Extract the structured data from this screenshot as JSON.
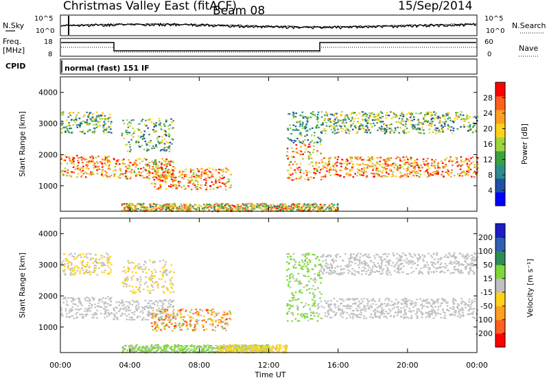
{
  "header": {
    "station": "Christmas Valley East (fitACF)",
    "beam": "Beam 08",
    "date": "15/Sep/2014"
  },
  "status": {
    "nsky_label": "N.Sky",
    "nsearch_label": "N.Search",
    "noise_ticks": [
      "10^5",
      "10^0"
    ],
    "freq_label_line1": "Freq.",
    "freq_label_line2": "[MHz]",
    "freq_ticks": [
      "18",
      "8"
    ],
    "nave_label": "Nave",
    "nave_ticks": [
      "60",
      "0"
    ],
    "cpid_label": "CPID",
    "cpid_text": "normal (fast) 151 IF"
  },
  "x_axis": {
    "title": "Time UT",
    "ticks": [
      "00:00",
      "04:00",
      "08:00",
      "12:00",
      "16:00",
      "20:00",
      "00:00"
    ]
  },
  "chart_data": [
    {
      "type": "heatmap",
      "panel": "power",
      "xlabel": "Time UT",
      "ylabel": "Slant Range [km]",
      "xlim": [
        0,
        24
      ],
      "ylim": [
        180,
        4500
      ],
      "y_ticks": [
        "1000",
        "2000",
        "3000",
        "4000"
      ],
      "colorbar": {
        "label": "Power [dB]",
        "ticks": [
          "28",
          "24",
          "20",
          "16",
          "12",
          "8",
          "4"
        ],
        "range": [
          0,
          30
        ],
        "colors": [
          "#0000ff",
          "#1f4fa6",
          "#2e8b8b",
          "#3ca040",
          "#9fd43a",
          "#ffd21a",
          "#ffa020",
          "#ff6020",
          "#ff0000"
        ]
      },
      "scatter_bands": [
        {
          "t0": 0.0,
          "t1": 2.9,
          "r0": 1300,
          "r1": 2000,
          "vmin": 14,
          "vmax": 30
        },
        {
          "t0": 0.0,
          "t1": 2.9,
          "r0": 2700,
          "r1": 3400,
          "vmin": 4,
          "vmax": 22
        },
        {
          "t0": 3.0,
          "t1": 6.5,
          "r0": 1250,
          "r1": 1900,
          "vmin": 12,
          "vmax": 30
        },
        {
          "t0": 3.5,
          "t1": 6.5,
          "r0": 2100,
          "r1": 3200,
          "vmin": 4,
          "vmax": 20
        },
        {
          "t0": 5.2,
          "t1": 9.8,
          "r0": 900,
          "r1": 1600,
          "vmin": 14,
          "vmax": 30
        },
        {
          "t0": 13.0,
          "t1": 15.0,
          "r0": 1200,
          "r1": 2400,
          "vmin": 12,
          "vmax": 30
        },
        {
          "t0": 13.0,
          "t1": 15.0,
          "r0": 2400,
          "r1": 3400,
          "vmin": 4,
          "vmax": 16
        },
        {
          "t0": 15.0,
          "t1": 24.0,
          "r0": 1300,
          "r1": 1950,
          "vmin": 14,
          "vmax": 30
        },
        {
          "t0": 15.0,
          "t1": 24.0,
          "r0": 2700,
          "r1": 3400,
          "vmin": 4,
          "vmax": 22
        },
        {
          "t0": 3.5,
          "t1": 16.0,
          "r0": 200,
          "r1": 450,
          "vmin": 8,
          "vmax": 28
        }
      ]
    },
    {
      "type": "heatmap",
      "panel": "velocity",
      "xlabel": "Time UT",
      "ylabel": "Slant Range [km]",
      "xlim": [
        0,
        24
      ],
      "ylim": [
        180,
        4500
      ],
      "y_ticks": [
        "1000",
        "2000",
        "3000",
        "4000"
      ],
      "colorbar": {
        "label": "Velocity [m s⁻¹]",
        "ticks": [
          "200",
          "100",
          "50",
          "15",
          "-15",
          "-50",
          "-100",
          "-200"
        ],
        "range": [
          -250,
          250
        ],
        "colors": [
          "#ff0000",
          "#ff6020",
          "#ffa020",
          "#ffd21a",
          "#c0c0c0",
          "#7ed63a",
          "#2e8b57",
          "#2f5fb0",
          "#1c1cc8"
        ]
      },
      "scatter_bands": [
        {
          "t0": 0.0,
          "t1": 2.9,
          "r0": 1300,
          "r1": 2000,
          "vmin": -15,
          "vmax": 15
        },
        {
          "t0": 0.0,
          "t1": 2.9,
          "r0": 2700,
          "r1": 3400,
          "vmin": -80,
          "vmax": 15
        },
        {
          "t0": 3.0,
          "t1": 6.5,
          "r0": 1250,
          "r1": 1900,
          "vmin": -15,
          "vmax": 15
        },
        {
          "t0": 3.5,
          "t1": 6.5,
          "r0": 2100,
          "r1": 3200,
          "vmin": -80,
          "vmax": 10
        },
        {
          "t0": 5.2,
          "t1": 9.8,
          "r0": 900,
          "r1": 1600,
          "vmin": -200,
          "vmax": 60
        },
        {
          "t0": 13.0,
          "t1": 15.0,
          "r0": 1200,
          "r1": 2400,
          "vmin": 15,
          "vmax": 60
        },
        {
          "t0": 13.0,
          "t1": 15.0,
          "r0": 2400,
          "r1": 3400,
          "vmin": 15,
          "vmax": 60
        },
        {
          "t0": 15.0,
          "t1": 24.0,
          "r0": 1300,
          "r1": 1950,
          "vmin": -15,
          "vmax": 15
        },
        {
          "t0": 15.0,
          "t1": 24.0,
          "r0": 2700,
          "r1": 3400,
          "vmin": -15,
          "vmax": 15
        },
        {
          "t0": 3.5,
          "t1": 12.0,
          "r0": 200,
          "r1": 450,
          "vmin": 15,
          "vmax": 60
        },
        {
          "t0": 9.0,
          "t1": 13.0,
          "r0": 200,
          "r1": 450,
          "vmin": -80,
          "vmax": -15
        }
      ]
    }
  ]
}
